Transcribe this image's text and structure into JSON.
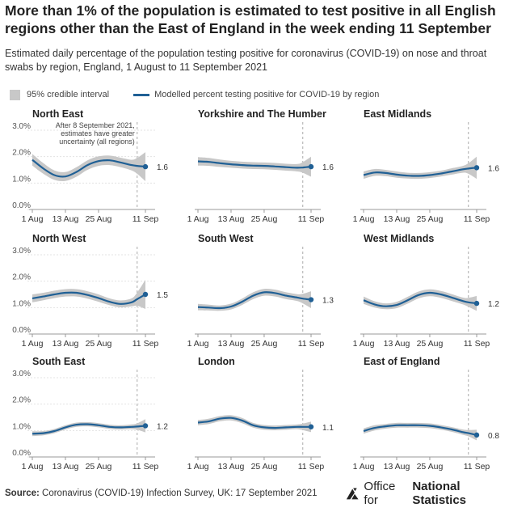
{
  "title": "More than 1% of the population is estimated to test positive in all English regions other than the East of England in the week ending 11 September",
  "subtitle": "Estimated daily percentage of the population testing positive for coronavirus (COVID-19) on nose and throat swabs by region, England, 1 August to 11 September 2021",
  "legend": {
    "interval_label": "95% credible interval",
    "line_label": "Modelled percent testing positive for COVID-19 by region"
  },
  "annotation": {
    "lines": [
      "After 8 September 2021,",
      "estimates have greater",
      "uncertainty (all regions)"
    ]
  },
  "colors": {
    "line": "#206095",
    "band": "#c8c8c8",
    "axis": "#999999",
    "text": "#222222"
  },
  "chart_data": {
    "type": "line",
    "x_ticks": [
      "1 Aug",
      "13 Aug",
      "25 Aug",
      "11 Sep"
    ],
    "x_tick_days": [
      0,
      12,
      24,
      41
    ],
    "x_range_days": [
      0,
      41
    ],
    "uncertainty_day": 38,
    "y_ticks": [
      "0.0%",
      "1.0%",
      "2.0%",
      "3.0%"
    ],
    "y_tick_values": [
      0,
      1,
      2,
      3
    ],
    "ylim": [
      0,
      3
    ],
    "x_days": [
      0,
      4,
      8,
      12,
      16,
      20,
      24,
      28,
      32,
      36,
      38,
      41
    ],
    "panels": [
      {
        "name": "North East",
        "final_label": "1.6",
        "values": [
          1.88,
          1.55,
          1.3,
          1.25,
          1.42,
          1.68,
          1.83,
          1.86,
          1.78,
          1.68,
          1.65,
          1.62
        ],
        "half_width": [
          0.22,
          0.2,
          0.18,
          0.17,
          0.18,
          0.18,
          0.18,
          0.18,
          0.18,
          0.2,
          0.3,
          0.55
        ]
      },
      {
        "name": "Yorkshire and The Humber",
        "final_label": "1.6",
        "values": [
          1.82,
          1.8,
          1.75,
          1.71,
          1.68,
          1.66,
          1.65,
          1.63,
          1.6,
          1.58,
          1.59,
          1.62
        ],
        "half_width": [
          0.16,
          0.15,
          0.14,
          0.13,
          0.13,
          0.13,
          0.13,
          0.13,
          0.13,
          0.14,
          0.2,
          0.38
        ]
      },
      {
        "name": "East Midlands",
        "final_label": "1.6",
        "values": [
          1.3,
          1.4,
          1.38,
          1.32,
          1.28,
          1.27,
          1.3,
          1.36,
          1.44,
          1.52,
          1.55,
          1.58
        ],
        "half_width": [
          0.14,
          0.13,
          0.12,
          0.12,
          0.11,
          0.11,
          0.11,
          0.11,
          0.12,
          0.13,
          0.2,
          0.42
        ]
      },
      {
        "name": "North West",
        "final_label": "1.5",
        "values": [
          1.35,
          1.42,
          1.5,
          1.56,
          1.56,
          1.48,
          1.36,
          1.22,
          1.14,
          1.2,
          1.32,
          1.5
        ],
        "half_width": [
          0.15,
          0.14,
          0.14,
          0.14,
          0.14,
          0.14,
          0.14,
          0.13,
          0.13,
          0.15,
          0.25,
          0.55
        ]
      },
      {
        "name": "South West",
        "final_label": "1.3",
        "values": [
          1.02,
          1.0,
          0.98,
          1.04,
          1.22,
          1.45,
          1.58,
          1.55,
          1.45,
          1.38,
          1.34,
          1.3
        ],
        "half_width": [
          0.12,
          0.11,
          0.1,
          0.11,
          0.12,
          0.13,
          0.13,
          0.13,
          0.13,
          0.13,
          0.18,
          0.32
        ]
      },
      {
        "name": "West Midlands",
        "final_label": "1.2",
        "values": [
          1.28,
          1.12,
          1.05,
          1.1,
          1.28,
          1.48,
          1.56,
          1.5,
          1.38,
          1.25,
          1.2,
          1.16
        ],
        "half_width": [
          0.14,
          0.12,
          0.11,
          0.12,
          0.13,
          0.13,
          0.13,
          0.13,
          0.13,
          0.13,
          0.17,
          0.28
        ]
      },
      {
        "name": "South East",
        "final_label": "1.2",
        "values": [
          0.88,
          0.9,
          0.98,
          1.12,
          1.22,
          1.24,
          1.2,
          1.14,
          1.12,
          1.14,
          1.15,
          1.18
        ],
        "half_width": [
          0.09,
          0.08,
          0.08,
          0.08,
          0.08,
          0.08,
          0.08,
          0.08,
          0.08,
          0.09,
          0.12,
          0.25
        ]
      },
      {
        "name": "London",
        "final_label": "1.1",
        "values": [
          1.3,
          1.35,
          1.45,
          1.48,
          1.38,
          1.2,
          1.12,
          1.1,
          1.12,
          1.14,
          1.14,
          1.14
        ],
        "half_width": [
          0.1,
          0.1,
          0.1,
          0.1,
          0.1,
          0.09,
          0.09,
          0.09,
          0.09,
          0.09,
          0.12,
          0.2
        ]
      },
      {
        "name": "East of England",
        "final_label": "0.8",
        "values": [
          0.98,
          1.1,
          1.16,
          1.2,
          1.2,
          1.2,
          1.18,
          1.12,
          1.04,
          0.94,
          0.9,
          0.83
        ],
        "half_width": [
          0.1,
          0.1,
          0.09,
          0.09,
          0.09,
          0.09,
          0.09,
          0.09,
          0.09,
          0.1,
          0.12,
          0.2
        ]
      }
    ]
  },
  "footer": {
    "source_label": "Source:",
    "source_text": "Coronavirus (COVID-19) Infection Survey, UK: 17 September 2021",
    "logo_prefix": "Office for",
    "logo_bold": "National Statistics"
  }
}
